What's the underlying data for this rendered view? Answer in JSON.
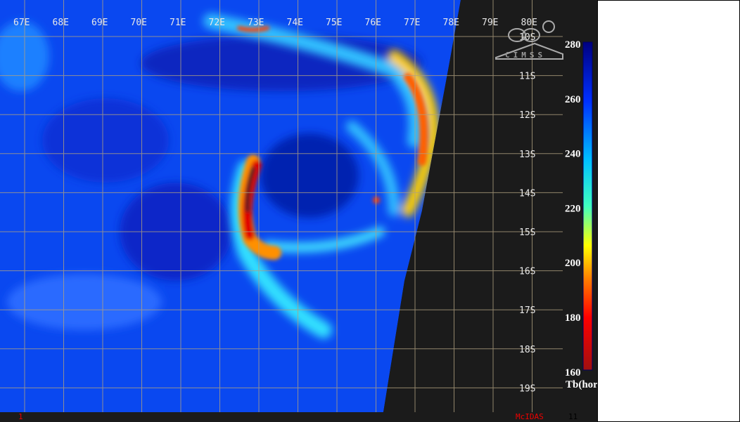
{
  "map": {
    "longitude_labels": [
      "67E",
      "68E",
      "69E",
      "70E",
      "71E",
      "72E",
      "73E",
      "74E",
      "75E",
      "76E",
      "77E",
      "78E",
      "79E",
      "80E"
    ],
    "latitude_labels": [
      "10S",
      "11S",
      "12S",
      "13S",
      "14S",
      "15S",
      "16S",
      "17S",
      "18S",
      "19S"
    ],
    "logo_text": "CIMSS"
  },
  "colorbar": {
    "tick_labels": [
      "280",
      "260",
      "240",
      "220",
      "200",
      "180",
      "160"
    ],
    "title": "Tb(horz)",
    "colors": [
      "#000080",
      "#0030ff",
      "#00c0ff",
      "#40ffc0",
      "#ffff00",
      "#ff8000",
      "#ff0000",
      "#a01010"
    ]
  },
  "footer": {
    "frame_number": "1",
    "software": "McIDAS",
    "frame_count": "11"
  }
}
